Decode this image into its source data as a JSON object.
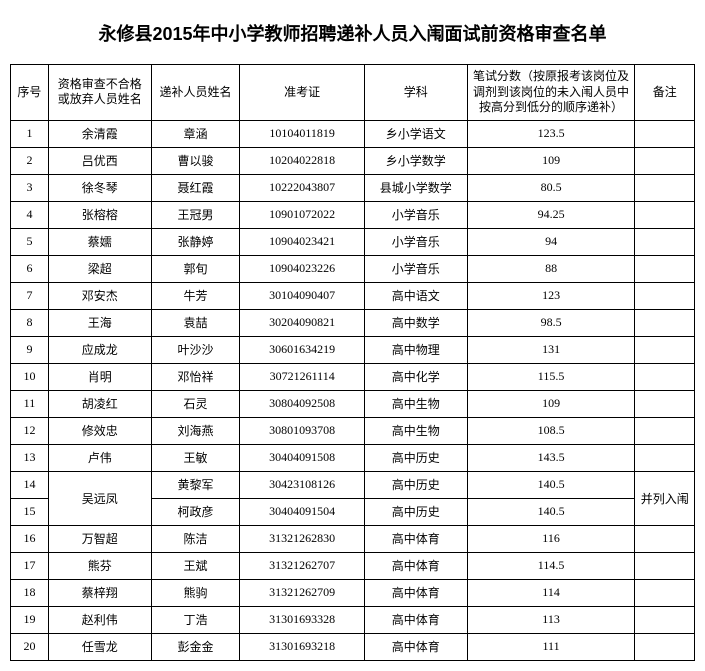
{
  "title": "永修县2015年中小学教师招聘递补人员入闱面试前资格审查名单",
  "headers": {
    "seq": "序号",
    "fail_name": "资格审查不合格或放弃人员姓名",
    "supp_name": "递补人员姓名",
    "exam_no": "准考证",
    "subject": "学科",
    "score": "笔试分数（按原报考该岗位及调剂到该岗位的未入闱人员中按高分到低分的顺序递补）",
    "remark": "备注"
  },
  "merged": {
    "row14_15_fail": "吴远凤",
    "row14_15_remark": "并列入闱"
  },
  "rows": [
    {
      "seq": "1",
      "fail": "余清霞",
      "supp": "章涵",
      "exam": "10104011819",
      "subject": "乡小学语文",
      "score": "123.5",
      "remark": ""
    },
    {
      "seq": "2",
      "fail": "吕优西",
      "supp": "曹以骏",
      "exam": "10204022818",
      "subject": "乡小学数学",
      "score": "109",
      "remark": ""
    },
    {
      "seq": "3",
      "fail": "徐冬琴",
      "supp": "聂红霞",
      "exam": "10222043807",
      "subject": "县城小学数学",
      "score": "80.5",
      "remark": ""
    },
    {
      "seq": "4",
      "fail": "张榕榕",
      "supp": "王冠男",
      "exam": "10901072022",
      "subject": "小学音乐",
      "score": "94.25",
      "remark": ""
    },
    {
      "seq": "5",
      "fail": "蔡嬬",
      "supp": "张静婷",
      "exam": "10904023421",
      "subject": "小学音乐",
      "score": "94",
      "remark": ""
    },
    {
      "seq": "6",
      "fail": "梁超",
      "supp": "郭旬",
      "exam": "10904023226",
      "subject": "小学音乐",
      "score": "88",
      "remark": ""
    },
    {
      "seq": "7",
      "fail": "邓安杰",
      "supp": "牛芳",
      "exam": "30104090407",
      "subject": "高中语文",
      "score": "123",
      "remark": ""
    },
    {
      "seq": "8",
      "fail": "王海",
      "supp": "袁喆",
      "exam": "30204090821",
      "subject": "高中数学",
      "score": "98.5",
      "remark": ""
    },
    {
      "seq": "9",
      "fail": "应成龙",
      "supp": "叶沙沙",
      "exam": "30601634219",
      "subject": "高中物理",
      "score": "131",
      "remark": ""
    },
    {
      "seq": "10",
      "fail": "肖明",
      "supp": "邓怡祥",
      "exam": "30721261114",
      "subject": "高中化学",
      "score": "115.5",
      "remark": ""
    },
    {
      "seq": "11",
      "fail": "胡凌红",
      "supp": "石灵",
      "exam": "30804092508",
      "subject": "高中生物",
      "score": "109",
      "remark": ""
    },
    {
      "seq": "12",
      "fail": "修效忠",
      "supp": "刘海燕",
      "exam": "30801093708",
      "subject": "高中生物",
      "score": "108.5",
      "remark": ""
    },
    {
      "seq": "13",
      "fail": "卢伟",
      "supp": "王敏",
      "exam": "30404091508",
      "subject": "高中历史",
      "score": "143.5",
      "remark": ""
    },
    {
      "seq": "14",
      "fail": "__MERGE__",
      "supp": "黄黎军",
      "exam": "30423108126",
      "subject": "高中历史",
      "score": "140.5",
      "remark": "__MERGE__"
    },
    {
      "seq": "15",
      "fail": "__MERGE__",
      "supp": "柯政彦",
      "exam": "30404091504",
      "subject": "高中历史",
      "score": "140.5",
      "remark": "__MERGE__"
    },
    {
      "seq": "16",
      "fail": "万智超",
      "supp": "陈洁",
      "exam": "31321262830",
      "subject": "高中体育",
      "score": "116",
      "remark": ""
    },
    {
      "seq": "17",
      "fail": "熊芬",
      "supp": "王斌",
      "exam": "31321262707",
      "subject": "高中体育",
      "score": "114.5",
      "remark": ""
    },
    {
      "seq": "18",
      "fail": "蔡梓翔",
      "supp": "熊驹",
      "exam": "31321262709",
      "subject": "高中体育",
      "score": "114",
      "remark": ""
    },
    {
      "seq": "19",
      "fail": "赵利伟",
      "supp": "丁浩",
      "exam": "31301693328",
      "subject": "高中体育",
      "score": "113",
      "remark": ""
    },
    {
      "seq": "20",
      "fail": "任雪龙",
      "supp": "彭金金",
      "exam": "31301693218",
      "subject": "高中体育",
      "score": "111",
      "remark": ""
    }
  ]
}
